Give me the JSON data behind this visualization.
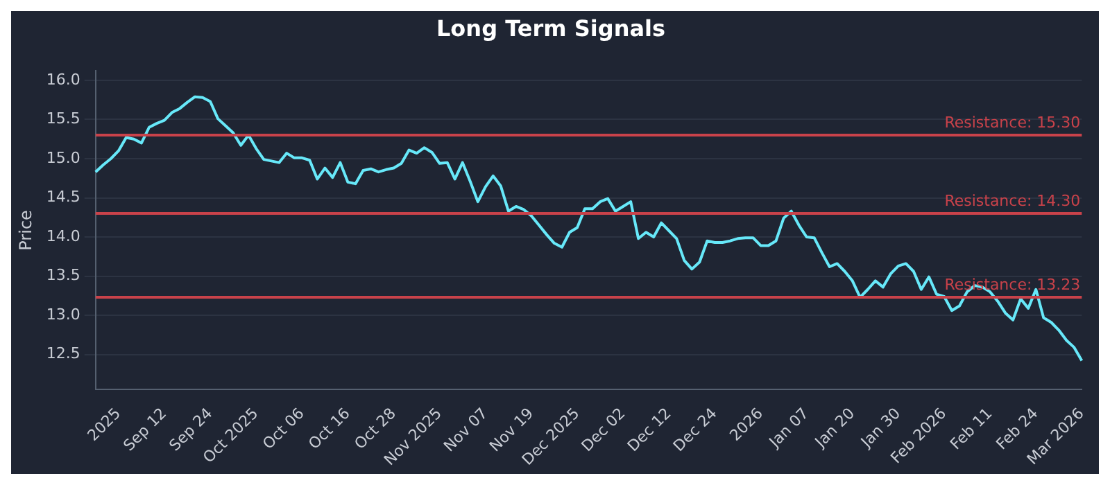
{
  "chart_data": {
    "type": "line",
    "title": "Long Term Signals",
    "ylabel": "Price",
    "categories": [
      null,
      null,
      null,
      "2025",
      null,
      null,
      null,
      null,
      null,
      "Sep 12",
      null,
      null,
      null,
      null,
      null,
      "Sep 24",
      null,
      null,
      null,
      null,
      null,
      "Oct 2025",
      null,
      null,
      null,
      null,
      null,
      "Oct 06",
      null,
      null,
      null,
      null,
      null,
      "Oct 16",
      null,
      null,
      null,
      null,
      null,
      "Oct 28",
      null,
      null,
      null,
      null,
      null,
      "Nov 2025",
      null,
      null,
      null,
      null,
      null,
      "Nov 07",
      null,
      null,
      null,
      null,
      null,
      "Nov 19",
      null,
      null,
      null,
      null,
      null,
      "Dec 2025",
      null,
      null,
      null,
      null,
      null,
      "Dec 02",
      null,
      null,
      null,
      null,
      null,
      "Dec 12",
      null,
      null,
      null,
      null,
      null,
      "Dec 24",
      null,
      null,
      null,
      null,
      null,
      "2026",
      null,
      null,
      null,
      null,
      null,
      "Jan 07",
      null,
      null,
      null,
      null,
      null,
      "Jan 20",
      null,
      null,
      null,
      null,
      null,
      "Jan 30",
      null,
      null,
      null,
      null,
      null,
      "Feb 2026",
      null,
      null,
      null,
      null,
      null,
      "Feb 11",
      null,
      null,
      null,
      null,
      null,
      "Feb 24",
      null,
      null,
      null,
      null,
      null,
      "Mar 2026"
    ],
    "series": [
      {
        "color": "#67e8f9",
        "values": [
          14.83,
          14.92,
          15.0,
          15.1,
          15.27,
          15.25,
          15.2,
          15.4,
          15.45,
          15.49,
          15.59,
          15.64,
          15.72,
          15.79,
          15.78,
          15.73,
          15.51,
          15.42,
          15.33,
          15.17,
          15.3,
          15.13,
          14.99,
          14.97,
          14.95,
          15.07,
          15.01,
          15.01,
          14.98,
          14.74,
          14.88,
          14.76,
          14.95,
          14.7,
          14.68,
          14.85,
          14.87,
          14.83,
          14.86,
          14.88,
          14.94,
          15.11,
          15.07,
          15.14,
          15.08,
          14.94,
          14.95,
          14.74,
          14.95,
          14.71,
          14.45,
          14.64,
          14.78,
          14.65,
          14.33,
          14.39,
          14.35,
          14.27,
          14.15,
          14.03,
          13.92,
          13.87,
          14.06,
          14.12,
          14.36,
          14.36,
          14.45,
          14.49,
          14.33,
          14.39,
          14.45,
          13.98,
          14.06,
          14.0,
          14.18,
          14.08,
          13.98,
          13.7,
          13.59,
          13.68,
          13.95,
          13.93,
          13.93,
          13.95,
          13.98,
          13.99,
          13.99,
          13.89,
          13.89,
          13.95,
          14.24,
          14.33,
          14.15,
          14.0,
          13.99,
          13.8,
          13.62,
          13.66,
          13.56,
          13.44,
          13.23,
          13.33,
          13.44,
          13.36,
          13.53,
          13.63,
          13.66,
          13.56,
          13.33,
          13.49,
          13.27,
          13.24,
          13.06,
          13.12,
          13.3,
          13.38,
          13.36,
          13.3,
          13.18,
          13.03,
          12.94,
          13.21,
          13.09,
          13.33,
          12.97,
          12.91,
          12.81,
          12.68,
          12.59,
          12.42
        ]
      }
    ],
    "ylim": [
      12.05,
      16.12
    ],
    "yticks": [
      12.5,
      {
        "value": 13,
        "label": "13.0"
      },
      13.5,
      {
        "value": 14,
        "label": "14.0"
      },
      14.5,
      {
        "value": 15,
        "label": "15.0"
      },
      15.5,
      {
        "value": 16,
        "label": "16.0"
      }
    ],
    "ref_lines": [
      {
        "axis": "y",
        "value": 15.3,
        "label": "Resistance: 15.30",
        "color": "#c9424a"
      },
      {
        "axis": "y",
        "value": 14.3,
        "label": "Resistance: 14.30",
        "color": "#c9424a"
      },
      {
        "axis": "y",
        "value": 13.23,
        "label": "Resistance: 13.23",
        "color": "#c9424a"
      }
    ],
    "grid": "y",
    "legend": false,
    "marker": "none",
    "line_style": "solid"
  }
}
